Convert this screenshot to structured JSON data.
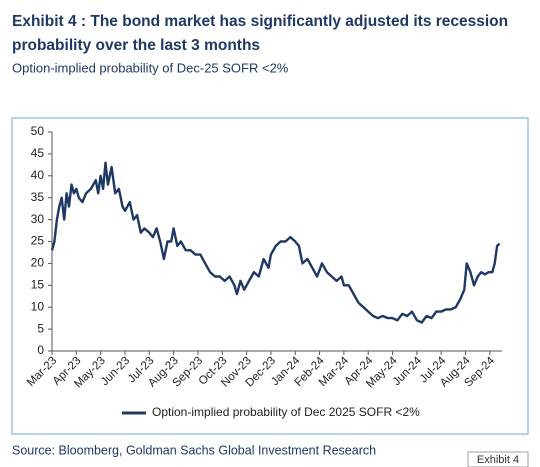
{
  "header": {
    "title": "Exhibit 4 : The bond market has significantly adjusted its recession probability over the last 3 months",
    "subtitle": "Option-implied probability of Dec-25 SOFR <2%"
  },
  "chart_data": {
    "type": "line",
    "x": [
      0,
      0.1,
      0.2,
      0.3,
      0.4,
      0.5,
      0.6,
      0.7,
      0.8,
      0.9,
      1.0,
      1.1,
      1.25,
      1.4,
      1.6,
      1.8,
      1.9,
      2.0,
      2.1,
      2.2,
      2.3,
      2.45,
      2.6,
      2.75,
      2.9,
      3.0,
      3.2,
      3.35,
      3.5,
      3.65,
      3.8,
      4.0,
      4.15,
      4.3,
      4.45,
      4.6,
      4.75,
      4.9,
      5.0,
      5.15,
      5.3,
      5.5,
      5.7,
      5.9,
      6.1,
      6.3,
      6.5,
      6.7,
      6.9,
      7.1,
      7.3,
      7.5,
      7.6,
      7.75,
      7.9,
      8.1,
      8.3,
      8.5,
      8.7,
      8.9,
      9.0,
      9.2,
      9.4,
      9.6,
      9.8,
      10.0,
      10.15,
      10.3,
      10.5,
      10.7,
      10.9,
      11.1,
      11.3,
      11.5,
      11.7,
      11.9,
      12.0,
      12.2,
      12.4,
      12.6,
      12.8,
      13.0,
      13.2,
      13.4,
      13.6,
      13.8,
      14.0,
      14.2,
      14.4,
      14.6,
      14.8,
      15.0,
      15.2,
      15.4,
      15.6,
      15.8,
      16.0,
      16.2,
      16.4,
      16.6,
      16.8,
      16.95,
      17.05,
      17.2,
      17.35,
      17.5,
      17.65,
      17.8,
      17.95,
      18.1,
      18.2,
      18.3,
      18.4
    ],
    "series": [
      {
        "name": "Option-implied probability of Dec 2025 SOFR <2%",
        "color": "#1f3864",
        "values": [
          23,
          25,
          30,
          33,
          35,
          30,
          36,
          33,
          38,
          36,
          37,
          35,
          34,
          36,
          37,
          39,
          36,
          40,
          37,
          43,
          38,
          42,
          36,
          37,
          33,
          32,
          34,
          30,
          31,
          27,
          28,
          27,
          26,
          28,
          25,
          21,
          25,
          25,
          28,
          24,
          25,
          23,
          23,
          22,
          22,
          20,
          18,
          17,
          17,
          16,
          17,
          15,
          13,
          16,
          14,
          16,
          18,
          17,
          21,
          19,
          22,
          24,
          25,
          25,
          26,
          25,
          24,
          20,
          21,
          19,
          17,
          20,
          18,
          17,
          16,
          17,
          15,
          15,
          13,
          11,
          10,
          9,
          8,
          7.5,
          8,
          7.5,
          7.5,
          7,
          8.5,
          8,
          9,
          7,
          6.5,
          8,
          7.5,
          9,
          9,
          9.5,
          9.5,
          10,
          12,
          14,
          20,
          18,
          15,
          17,
          18,
          17.5,
          18,
          18,
          20,
          24,
          24.5
        ]
      }
    ],
    "xlim": [
      0,
      18.5
    ],
    "xticks": [
      {
        "value": 0,
        "label": "Mar-23"
      },
      {
        "value": 1,
        "label": "Apr-23"
      },
      {
        "value": 2,
        "label": "May-23"
      },
      {
        "value": 3,
        "label": "Jun-23"
      },
      {
        "value": 4,
        "label": "Jul-23"
      },
      {
        "value": 5,
        "label": "Aug-23"
      },
      {
        "value": 6,
        "label": "Sep-23"
      },
      {
        "value": 7,
        "label": "Oct-23"
      },
      {
        "value": 8,
        "label": "Nov-23"
      },
      {
        "value": 9,
        "label": "Dec-23"
      },
      {
        "value": 10,
        "label": "Jan-24"
      },
      {
        "value": 11,
        "label": "Feb-24"
      },
      {
        "value": 12,
        "label": "Mar-24"
      },
      {
        "value": 13,
        "label": "Apr-24"
      },
      {
        "value": 14,
        "label": "May-24"
      },
      {
        "value": 15,
        "label": "Jun-24"
      },
      {
        "value": 16,
        "label": "Jul-24"
      },
      {
        "value": 17,
        "label": "Aug-24"
      },
      {
        "value": 18,
        "label": "Sep-24"
      }
    ],
    "ylim": [
      0,
      50
    ],
    "yticks": [
      0,
      5,
      10,
      15,
      20,
      25,
      30,
      35,
      40,
      45,
      50
    ],
    "grid": false,
    "legend": "bottom"
  },
  "footer": {
    "source": "Source: Bloomberg, Goldman Sachs Global Investment Research",
    "badge": "Exhibit 4"
  }
}
